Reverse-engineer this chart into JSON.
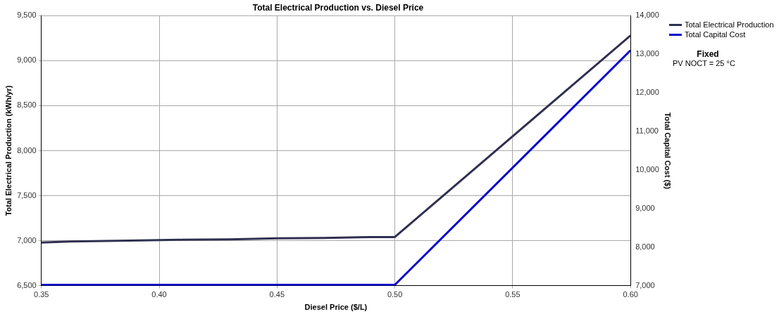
{
  "chart_data": {
    "type": "line",
    "title": "Total Electrical Production vs. Diesel Price",
    "xlabel": "Diesel Price ($/L)",
    "ylabel": "Total Electrical Production (kWh/yr)",
    "y2label": "Total Capital Cost ($)",
    "annotations": [
      "Fixed",
      "PV NOCT = 25 °C"
    ],
    "series": [
      {
        "name": "Total Electrical Production",
        "color": "#2f3050",
        "x": [
          0.35,
          0.3625,
          0.3875,
          0.41,
          0.43,
          0.45,
          0.47,
          0.49,
          0.5,
          0.6
        ],
        "values": [
          6980,
          6990,
          7000,
          7010,
          7015,
          7025,
          7030,
          7040,
          7040,
          9280
        ]
      },
      {
        "name": "Total Capital Cost",
        "color": "#0000cc",
        "axis": "y2",
        "x": [
          0.35,
          0.5,
          0.6
        ],
        "values": [
          7020,
          7020,
          13100
        ]
      }
    ],
    "xlim": [
      0.35,
      0.6
    ],
    "xticks": [
      {
        "value": 0.35,
        "label": "0.35"
      },
      {
        "value": 0.4,
        "label": "0.40"
      },
      {
        "value": 0.45,
        "label": "0.45"
      },
      {
        "value": 0.5,
        "label": "0.50"
      },
      {
        "value": 0.55,
        "label": "0.55"
      },
      {
        "value": 0.6,
        "label": "0.60"
      }
    ],
    "ylim": [
      6500,
      9500
    ],
    "yticks": [
      {
        "value": 6500,
        "label": "6,500"
      },
      {
        "value": 7000,
        "label": "7,000"
      },
      {
        "value": 7500,
        "label": "7,500"
      },
      {
        "value": 8000,
        "label": "8,000"
      },
      {
        "value": 8500,
        "label": "8,500"
      },
      {
        "value": 9000,
        "label": "9,000"
      },
      {
        "value": 9500,
        "label": "9,500"
      }
    ],
    "y2lim": [
      7000,
      14000
    ],
    "y2ticks": [
      {
        "value": 7000,
        "label": "7,000"
      },
      {
        "value": 8000,
        "label": "8,000"
      },
      {
        "value": 9000,
        "label": "9,000"
      },
      {
        "value": 10000,
        "label": "10,000"
      },
      {
        "value": 11000,
        "label": "11,000"
      },
      {
        "value": 12000,
        "label": "12,000"
      },
      {
        "value": 13000,
        "label": "13,000"
      },
      {
        "value": 14000,
        "label": "14,000"
      }
    ],
    "grid": true,
    "legend": "top right",
    "marker": "none",
    "line_style": "solid"
  }
}
